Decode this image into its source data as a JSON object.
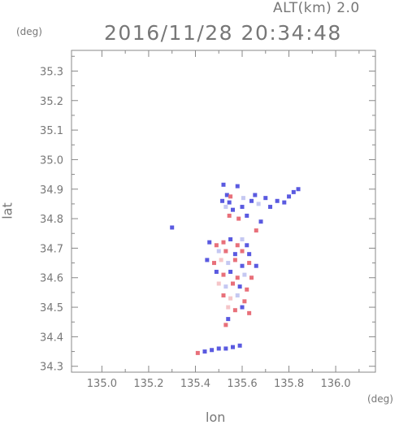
{
  "header": {
    "alt_label": "ALT(km) 2.0",
    "timestamp": "2016/11/28 20:34:48"
  },
  "chart_data": {
    "type": "heatmap",
    "xlabel": "lon",
    "ylabel": "lat",
    "x_unit": "(deg)",
    "y_unit": "(deg)",
    "xlim": [
      134.87,
      136.17
    ],
    "ylim": [
      34.28,
      35.37
    ],
    "xticks": [
      "135.0",
      "135.2",
      "135.4",
      "135.6",
      "135.8",
      "136.0"
    ],
    "yticks": [
      "34.3",
      "34.4",
      "34.5",
      "34.6",
      "34.7",
      "34.8",
      "34.9",
      "35.0",
      "35.1",
      "35.2",
      "35.3"
    ],
    "grid": false,
    "colors": {
      "positive": "#e8707a",
      "negative": "#5a5ae0",
      "faint_positive": "#f5c5c8",
      "faint_negative": "#c5c8f2",
      "frame": "#888888"
    },
    "cells": [
      {
        "lon": 135.52,
        "lat": 34.915,
        "v": -1
      },
      {
        "lon": 135.535,
        "lat": 34.88,
        "v": -1
      },
      {
        "lon": 135.55,
        "lat": 34.875,
        "v": 1
      },
      {
        "lon": 135.515,
        "lat": 34.86,
        "v": -1
      },
      {
        "lon": 135.545,
        "lat": 34.855,
        "v": -1
      },
      {
        "lon": 135.53,
        "lat": 34.84,
        "v": -0.5
      },
      {
        "lon": 135.56,
        "lat": 34.83,
        "v": -1
      },
      {
        "lon": 135.545,
        "lat": 34.81,
        "v": 1
      },
      {
        "lon": 135.58,
        "lat": 34.91,
        "v": -1
      },
      {
        "lon": 135.605,
        "lat": 34.87,
        "v": -0.5
      },
      {
        "lon": 135.6,
        "lat": 34.84,
        "v": -1
      },
      {
        "lon": 135.62,
        "lat": 34.81,
        "v": -1
      },
      {
        "lon": 135.585,
        "lat": 34.8,
        "v": 1
      },
      {
        "lon": 135.64,
        "lat": 34.86,
        "v": -1
      },
      {
        "lon": 135.655,
        "lat": 34.88,
        "v": -1
      },
      {
        "lon": 135.67,
        "lat": 34.85,
        "v": -0.5
      },
      {
        "lon": 135.7,
        "lat": 34.87,
        "v": -1
      },
      {
        "lon": 135.72,
        "lat": 34.84,
        "v": -1
      },
      {
        "lon": 135.75,
        "lat": 34.86,
        "v": -1
      },
      {
        "lon": 135.78,
        "lat": 34.855,
        "v": -1
      },
      {
        "lon": 135.8,
        "lat": 34.875,
        "v": -1
      },
      {
        "lon": 135.82,
        "lat": 34.89,
        "v": -1
      },
      {
        "lon": 135.84,
        "lat": 34.9,
        "v": -1
      },
      {
        "lon": 135.68,
        "lat": 34.79,
        "v": -1
      },
      {
        "lon": 135.66,
        "lat": 34.76,
        "v": 1
      },
      {
        "lon": 135.3,
        "lat": 34.77,
        "v": -1
      },
      {
        "lon": 135.46,
        "lat": 34.72,
        "v": -1
      },
      {
        "lon": 135.49,
        "lat": 34.71,
        "v": 1
      },
      {
        "lon": 135.52,
        "lat": 34.72,
        "v": 1
      },
      {
        "lon": 135.55,
        "lat": 34.73,
        "v": -1
      },
      {
        "lon": 135.58,
        "lat": 34.71,
        "v": 1
      },
      {
        "lon": 135.6,
        "lat": 34.73,
        "v": -0.5
      },
      {
        "lon": 135.62,
        "lat": 34.71,
        "v": -1
      },
      {
        "lon": 135.5,
        "lat": 34.69,
        "v": -0.5
      },
      {
        "lon": 135.53,
        "lat": 34.69,
        "v": 1
      },
      {
        "lon": 135.57,
        "lat": 34.68,
        "v": -1
      },
      {
        "lon": 135.6,
        "lat": 34.69,
        "v": 1
      },
      {
        "lon": 135.63,
        "lat": 34.68,
        "v": -1
      },
      {
        "lon": 135.45,
        "lat": 34.66,
        "v": -1
      },
      {
        "lon": 135.48,
        "lat": 34.65,
        "v": 1
      },
      {
        "lon": 135.51,
        "lat": 34.66,
        "v": 0.5
      },
      {
        "lon": 135.54,
        "lat": 34.65,
        "v": -0.5
      },
      {
        "lon": 135.57,
        "lat": 34.66,
        "v": 1
      },
      {
        "lon": 135.6,
        "lat": 34.64,
        "v": -1
      },
      {
        "lon": 135.63,
        "lat": 34.65,
        "v": 1
      },
      {
        "lon": 135.66,
        "lat": 34.64,
        "v": -1
      },
      {
        "lon": 135.49,
        "lat": 34.62,
        "v": -1
      },
      {
        "lon": 135.52,
        "lat": 34.61,
        "v": 1
      },
      {
        "lon": 135.55,
        "lat": 34.62,
        "v": -1
      },
      {
        "lon": 135.58,
        "lat": 34.6,
        "v": 1
      },
      {
        "lon": 135.61,
        "lat": 34.61,
        "v": -0.5
      },
      {
        "lon": 135.64,
        "lat": 34.6,
        "v": 1
      },
      {
        "lon": 135.5,
        "lat": 34.58,
        "v": 0.5
      },
      {
        "lon": 135.53,
        "lat": 34.57,
        "v": -0.5
      },
      {
        "lon": 135.56,
        "lat": 34.58,
        "v": 1
      },
      {
        "lon": 135.59,
        "lat": 34.57,
        "v": -1
      },
      {
        "lon": 135.62,
        "lat": 34.56,
        "v": 1
      },
      {
        "lon": 135.52,
        "lat": 34.54,
        "v": 1
      },
      {
        "lon": 135.55,
        "lat": 34.53,
        "v": 0.5
      },
      {
        "lon": 135.58,
        "lat": 34.54,
        "v": -0.5
      },
      {
        "lon": 135.61,
        "lat": 34.52,
        "v": 1
      },
      {
        "lon": 135.54,
        "lat": 34.5,
        "v": 0.5
      },
      {
        "lon": 135.57,
        "lat": 34.49,
        "v": 1
      },
      {
        "lon": 135.6,
        "lat": 34.5,
        "v": -1
      },
      {
        "lon": 135.63,
        "lat": 34.48,
        "v": 1
      },
      {
        "lon": 135.53,
        "lat": 34.44,
        "v": 1
      },
      {
        "lon": 135.54,
        "lat": 34.46,
        "v": -1
      },
      {
        "lon": 135.41,
        "lat": 34.345,
        "v": 1
      },
      {
        "lon": 135.44,
        "lat": 34.35,
        "v": -1
      },
      {
        "lon": 135.47,
        "lat": 34.355,
        "v": -1
      },
      {
        "lon": 135.5,
        "lat": 34.36,
        "v": -1
      },
      {
        "lon": 135.53,
        "lat": 34.36,
        "v": -1
      },
      {
        "lon": 135.56,
        "lat": 34.365,
        "v": -1
      },
      {
        "lon": 135.59,
        "lat": 34.37,
        "v": -1
      }
    ]
  }
}
